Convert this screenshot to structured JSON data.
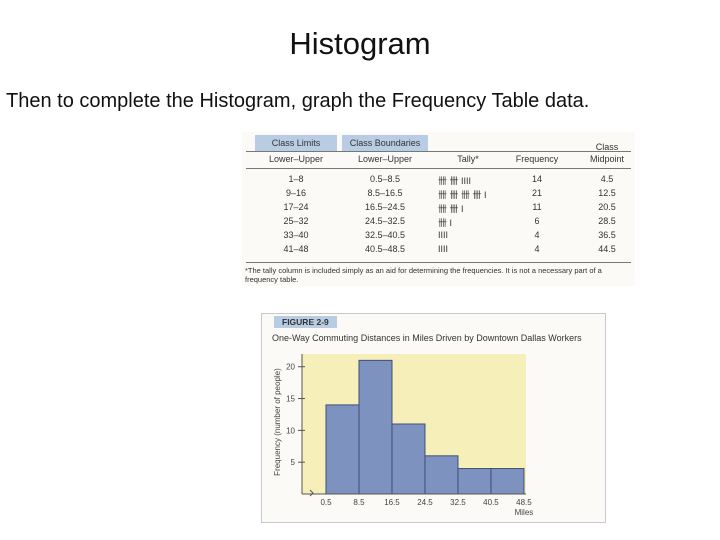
{
  "slide": {
    "title": "Histogram",
    "subtitle": "Then to complete the Histogram, graph the Frequency Table data."
  },
  "table": {
    "group_headers": {
      "class_limits": "Class Limits",
      "class_boundaries": "Class Boundaries"
    },
    "headers": {
      "lower_upper_1": "Lower–Upper",
      "lower_upper_2": "Lower–Upper",
      "tally": "Tally*",
      "frequency": "Frequency",
      "class": "Class",
      "midpoint": "Midpoint"
    },
    "rows": [
      {
        "limits": "1–8",
        "boundaries": "0.5–8.5",
        "tally": "卌 卌 IIII",
        "frequency": "14",
        "midpoint": "4.5"
      },
      {
        "limits": "9–16",
        "boundaries": "8.5–16.5",
        "tally": "卌 卌 卌 卌 I",
        "frequency": "21",
        "midpoint": "12.5"
      },
      {
        "limits": "17–24",
        "boundaries": "16.5–24.5",
        "tally": "卌 卌 I",
        "frequency": "11",
        "midpoint": "20.5"
      },
      {
        "limits": "25–32",
        "boundaries": "24.5–32.5",
        "tally": "卌 I",
        "frequency": "6",
        "midpoint": "28.5"
      },
      {
        "limits": "33–40",
        "boundaries": "32.5–40.5",
        "tally": "IIII",
        "frequency": "4",
        "midpoint": "36.5"
      },
      {
        "limits": "41–48",
        "boundaries": "40.5–48.5",
        "tally": "IIII",
        "frequency": "4",
        "midpoint": "44.5"
      }
    ],
    "footnote": "*The tally column is included simply as an aid for determining the frequencies. It is not a necessary part of a frequency table."
  },
  "figure": {
    "label": "FIGURE 2-9",
    "caption": "One-Way Commuting Distances in Miles Driven by Downtown Dallas Workers"
  },
  "chart_data": {
    "type": "bar",
    "bin_edges": [
      0.5,
      8.5,
      16.5,
      24.5,
      32.5,
      40.5,
      48.5
    ],
    "tick_labels": [
      "0.5",
      "8.5",
      "16.5",
      "24.5",
      "32.5",
      "40.5",
      "48.5"
    ],
    "values": [
      14,
      21,
      11,
      6,
      4,
      4
    ],
    "xlabel": "Miles",
    "ylabel": "Frequency (number of people)",
    "yticks": [
      5,
      10,
      15,
      20
    ],
    "ylim": [
      0,
      22
    ],
    "grid": false,
    "colors": {
      "bar": "#7d92bf",
      "bar_edge": "#3e4f78",
      "plot_bg": "#f7efb9",
      "axis": "#555555"
    }
  }
}
